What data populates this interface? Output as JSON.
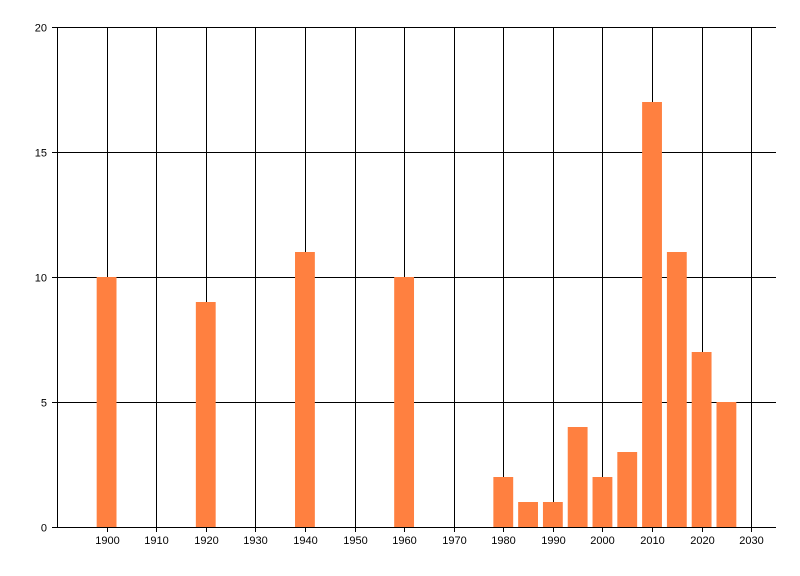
{
  "chart_data": {
    "type": "bar",
    "title": "",
    "xlabel": "",
    "ylabel": "",
    "x": [
      1900,
      1920,
      1940,
      1960,
      1980,
      1985,
      1990,
      1995,
      2000,
      2005,
      2010,
      2015,
      2020,
      2025
    ],
    "values": [
      10,
      9,
      11,
      10,
      2,
      1,
      1,
      4,
      2,
      3,
      17,
      11,
      7,
      5
    ],
    "xlim": [
      1890,
      2035
    ],
    "ylim": [
      0,
      20
    ],
    "x_ticks": [
      1900,
      1910,
      1920,
      1930,
      1940,
      1950,
      1960,
      1970,
      1980,
      1990,
      2000,
      2010,
      2020,
      2030
    ],
    "y_ticks": [
      0,
      5,
      10,
      15,
      20
    ],
    "grid": true,
    "bar_color": "#FF8040",
    "legend": "none"
  }
}
